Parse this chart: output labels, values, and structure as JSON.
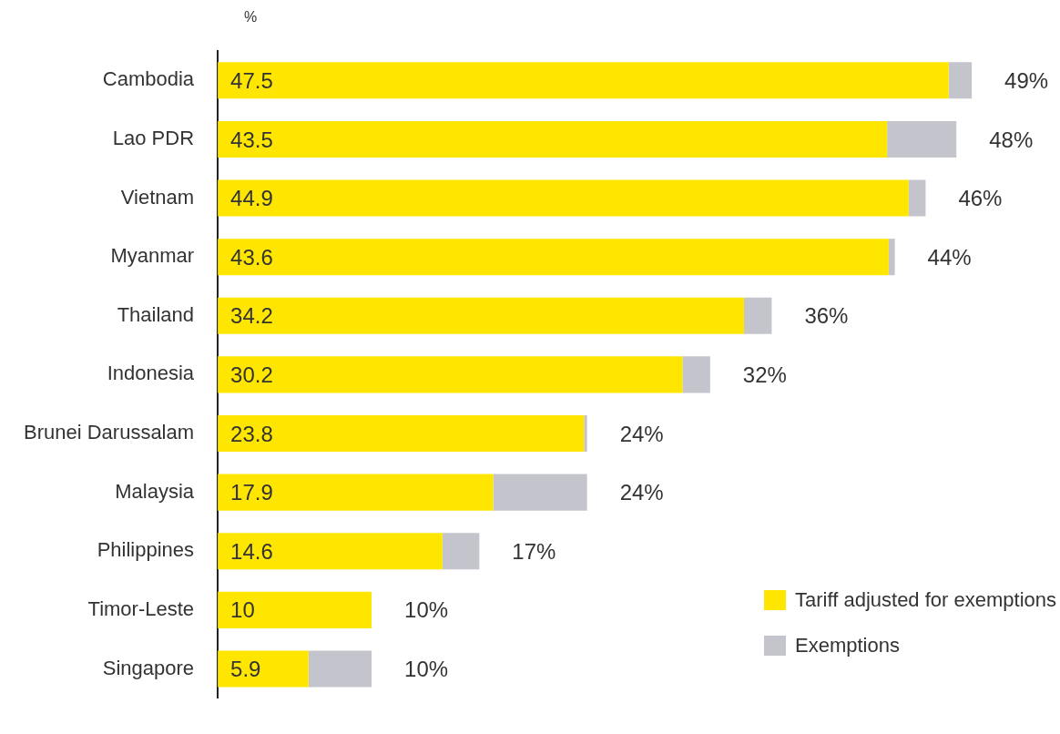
{
  "chart_data": {
    "type": "bar",
    "orientation": "horizontal",
    "stacked": true,
    "xlabel": "%",
    "categories": [
      "Cambodia",
      "Lao PDR",
      "Vietnam",
      "Myanmar",
      "Thailand",
      "Indonesia",
      "Brunei Darussalam",
      "Malaysia",
      "Philippines",
      "Timor-Leste",
      "Singapore"
    ],
    "series": [
      {
        "name": "Tariff adjusted for exemptions",
        "color": "#ffe600",
        "values": [
          47.5,
          43.5,
          44.9,
          43.6,
          34.2,
          30.2,
          23.8,
          17.9,
          14.6,
          10,
          5.9
        ],
        "value_labels": [
          "47.5",
          "43.5",
          "44.9",
          "43.6",
          "34.2",
          "30.2",
          "23.8",
          "17.9",
          "14.6",
          "10",
          "5.9"
        ]
      },
      {
        "name": "Exemptions",
        "color": "#c4c4cd",
        "values": [
          1.5,
          4.5,
          1.1,
          0.4,
          1.8,
          1.8,
          0.2,
          6.1,
          2.4,
          0,
          4.1
        ]
      }
    ],
    "totals": [
      "49%",
      "48%",
      "46%",
      "44%",
      "36%",
      "32%",
      "24%",
      "24%",
      "17%",
      "10%",
      "10%"
    ],
    "legend": "bottom right"
  }
}
